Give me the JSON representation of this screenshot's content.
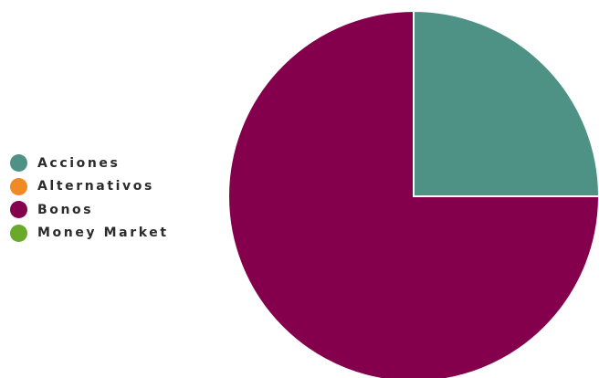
{
  "chart_data": {
    "type": "pie",
    "title": "",
    "legend_position": "left",
    "series": [
      {
        "name": "Acciones",
        "value": 25,
        "color": "#4e9185"
      },
      {
        "name": "Alternativos",
        "value": 0,
        "color": "#f08a24"
      },
      {
        "name": "Bonos",
        "value": 75,
        "color": "#84004d"
      },
      {
        "name": "Money Market",
        "value": 0,
        "color": "#6aaa2a"
      }
    ]
  }
}
